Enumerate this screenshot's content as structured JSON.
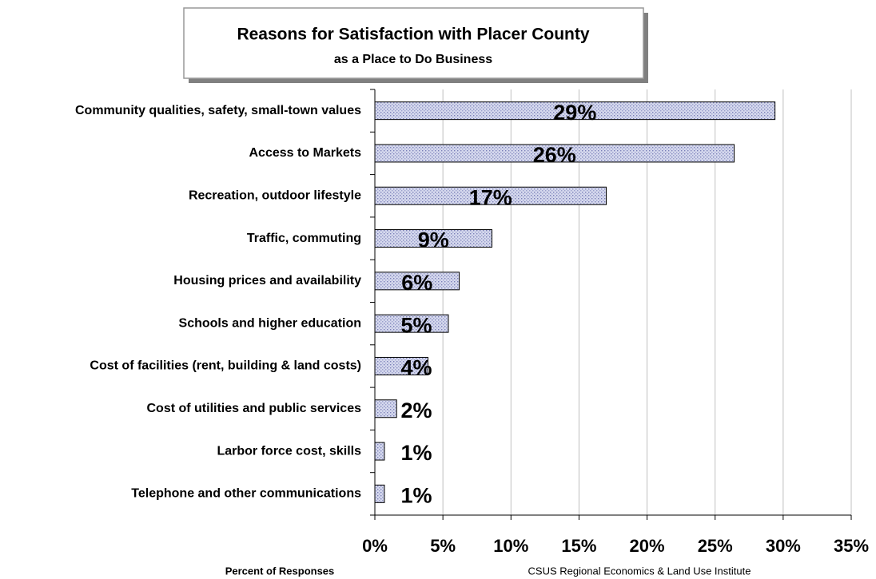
{
  "chart_data": {
    "type": "hbar",
    "title": "Reasons for Satisfaction with Placer County",
    "subtitle": "as a Place to Do Business",
    "x_label": "Percent of Responses",
    "source": "CSUS Regional Economics & Land Use Institute",
    "categories": [
      "Community qualities, safety, small-town values",
      "Access to Markets",
      "Recreation, outdoor lifestyle",
      "Traffic, commuting",
      "Housing prices and availability",
      "Schools and higher education",
      "Cost of facilities (rent, building & land costs)",
      "Cost of utilities and public services",
      "Larbor force cost, skills",
      "Telephone and other communications"
    ],
    "values": [
      29.4,
      26.4,
      17.0,
      8.6,
      6.2,
      5.4,
      3.9,
      1.6,
      0.7,
      0.7
    ],
    "value_labels": [
      "29%",
      "26%",
      "17%",
      "9%",
      "6%",
      "5%",
      "4%",
      "2%",
      "1%",
      "1%"
    ],
    "color": "#d6d9ee",
    "xlim": [
      0,
      35
    ],
    "xticks": [
      {
        "value": 0,
        "label": "0%"
      },
      {
        "value": 5,
        "label": "5%"
      },
      {
        "value": 10,
        "label": "10%"
      },
      {
        "value": 15,
        "label": "15%"
      },
      {
        "value": 20,
        "label": "20%"
      },
      {
        "value": 25,
        "label": "25%"
      },
      {
        "value": 30,
        "label": "30%"
      },
      {
        "value": 35,
        "label": "35%"
      }
    ],
    "grid": true
  }
}
